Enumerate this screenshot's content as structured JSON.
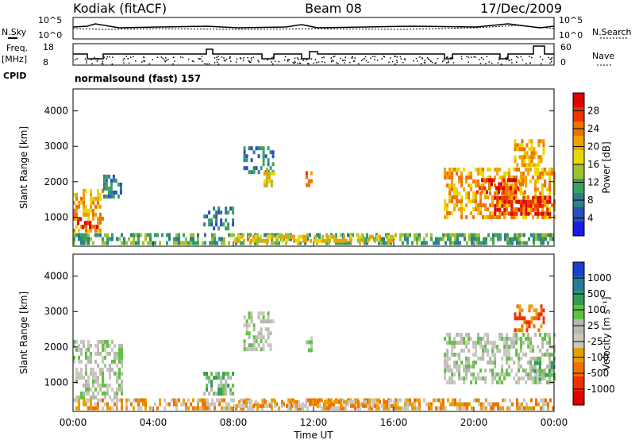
{
  "header": {
    "station": "Kodiak (fitACF)",
    "beam": "Beam 08",
    "date": "17/Dec/2009",
    "mode": "normalsound (fast) 157"
  },
  "side_labels": {
    "nsky": "N.Sky",
    "nsearch": "N.Search",
    "freq_line1": "Freq.",
    "freq_line2": "[MHz]",
    "nave": "Nave",
    "cpid": "CPID"
  },
  "summary_axes": {
    "noise_left": [
      "10^5",
      "10^0"
    ],
    "noise_right": [
      "10^5",
      "10^0"
    ],
    "freq_left": [
      "18",
      "8"
    ],
    "nave_right": [
      "60",
      "0"
    ]
  },
  "chart_data": [
    {
      "type": "heatmap",
      "name": "power",
      "ylabel": "Slant Range [km]",
      "xlabel": "",
      "ylim": [
        180,
        4620
      ],
      "xlim": [
        0,
        24
      ],
      "yticks": [
        "1000",
        "2000",
        "3000",
        "4000"
      ],
      "yticks_values": [
        1000,
        2000,
        3000,
        4000
      ],
      "colorbar": {
        "label": "Power [dB]",
        "ticks": [
          "4",
          "8",
          "12",
          "16",
          "20",
          "24",
          "28"
        ],
        "colors": [
          "#1a1ae0",
          "#2850b8",
          "#2e7e8c",
          "#3aa060",
          "#a0c030",
          "#e8d800",
          "#f0a000",
          "#f07000",
          "#f03000",
          "#e00000"
        ]
      },
      "regions": [
        {
          "t0": 0.0,
          "t1": 1.5,
          "r0": 600,
          "r1": 1800,
          "level": 6
        },
        {
          "t0": 0.2,
          "t1": 1.2,
          "r0": 700,
          "r1": 1000,
          "level": 9
        },
        {
          "t0": 1.5,
          "t1": 2.4,
          "r0": 1600,
          "r1": 2200,
          "level": 2
        },
        {
          "t0": 0.0,
          "t1": 24.0,
          "r0": 250,
          "r1": 550,
          "level": 3
        },
        {
          "t0": 6.5,
          "t1": 8.0,
          "r0": 700,
          "r1": 1300,
          "level": 2
        },
        {
          "t0": 8.5,
          "t1": 10.0,
          "r0": 2300,
          "r1": 3000,
          "level": 2
        },
        {
          "t0": 9.5,
          "t1": 10.0,
          "r0": 1900,
          "r1": 2400,
          "level": 5
        },
        {
          "t0": 11.6,
          "t1": 11.9,
          "r0": 1900,
          "r1": 2300,
          "level": 7
        },
        {
          "t0": 8.0,
          "t1": 16.0,
          "r0": 300,
          "r1": 500,
          "level": 5
        },
        {
          "t0": 18.5,
          "t1": 24.0,
          "r0": 1000,
          "r1": 2400,
          "level": 6
        },
        {
          "t0": 21.0,
          "t1": 23.8,
          "r0": 1100,
          "r1": 1600,
          "level": 9
        },
        {
          "t0": 20.0,
          "t1": 22.5,
          "r0": 1700,
          "r1": 2100,
          "level": 8
        },
        {
          "t0": 22.0,
          "t1": 23.5,
          "r0": 2500,
          "r1": 3200,
          "level": 6
        }
      ]
    },
    {
      "type": "heatmap",
      "name": "velocity",
      "ylabel": "Slant Range [km]",
      "xlabel": "Time UT",
      "ylim": [
        180,
        4620
      ],
      "xlim": [
        0,
        24
      ],
      "xticks": [
        "00:00",
        "04:00",
        "08:00",
        "12:00",
        "16:00",
        "20:00",
        "00:00"
      ],
      "xticks_values": [
        0,
        4,
        8,
        12,
        16,
        20,
        24
      ],
      "yticks": [
        "1000",
        "2000",
        "3000",
        "4000"
      ],
      "yticks_values": [
        1000,
        2000,
        3000,
        4000
      ],
      "colorbar": {
        "label": "Velocity [m s⁻¹]",
        "ticks": [
          "1000",
          "500",
          "100",
          "25",
          "-25",
          "-100",
          "-500",
          "-1000"
        ],
        "colors": [
          "#1a40d0",
          "#2a7a9a",
          "#2e9a5a",
          "#60c040",
          "#b8b8b0",
          "#c8c8c0",
          "#e8a000",
          "#f07000",
          "#f03000",
          "#e00000"
        ]
      },
      "regions": [
        {
          "t0": 0.0,
          "t1": 2.4,
          "r0": 600,
          "r1": 2200,
          "level": 4
        },
        {
          "t0": 0.0,
          "t1": 24.0,
          "r0": 250,
          "r1": 550,
          "level": 6
        },
        {
          "t0": 6.5,
          "t1": 8.0,
          "r0": 700,
          "r1": 1300,
          "level": 3
        },
        {
          "t0": 8.5,
          "t1": 10.0,
          "r0": 1900,
          "r1": 3000,
          "level": 4
        },
        {
          "t0": 11.6,
          "t1": 11.9,
          "r0": 1900,
          "r1": 2300,
          "level": 4
        },
        {
          "t0": 8.0,
          "t1": 16.0,
          "r0": 300,
          "r1": 500,
          "level": 6
        },
        {
          "t0": 18.5,
          "t1": 24.0,
          "r0": 1000,
          "r1": 2400,
          "level": 4
        },
        {
          "t0": 22.0,
          "t1": 23.5,
          "r0": 2500,
          "r1": 3200,
          "level": 7
        },
        {
          "t0": 23.0,
          "t1": 24.0,
          "r0": 1100,
          "r1": 1600,
          "level": 3
        }
      ]
    }
  ]
}
